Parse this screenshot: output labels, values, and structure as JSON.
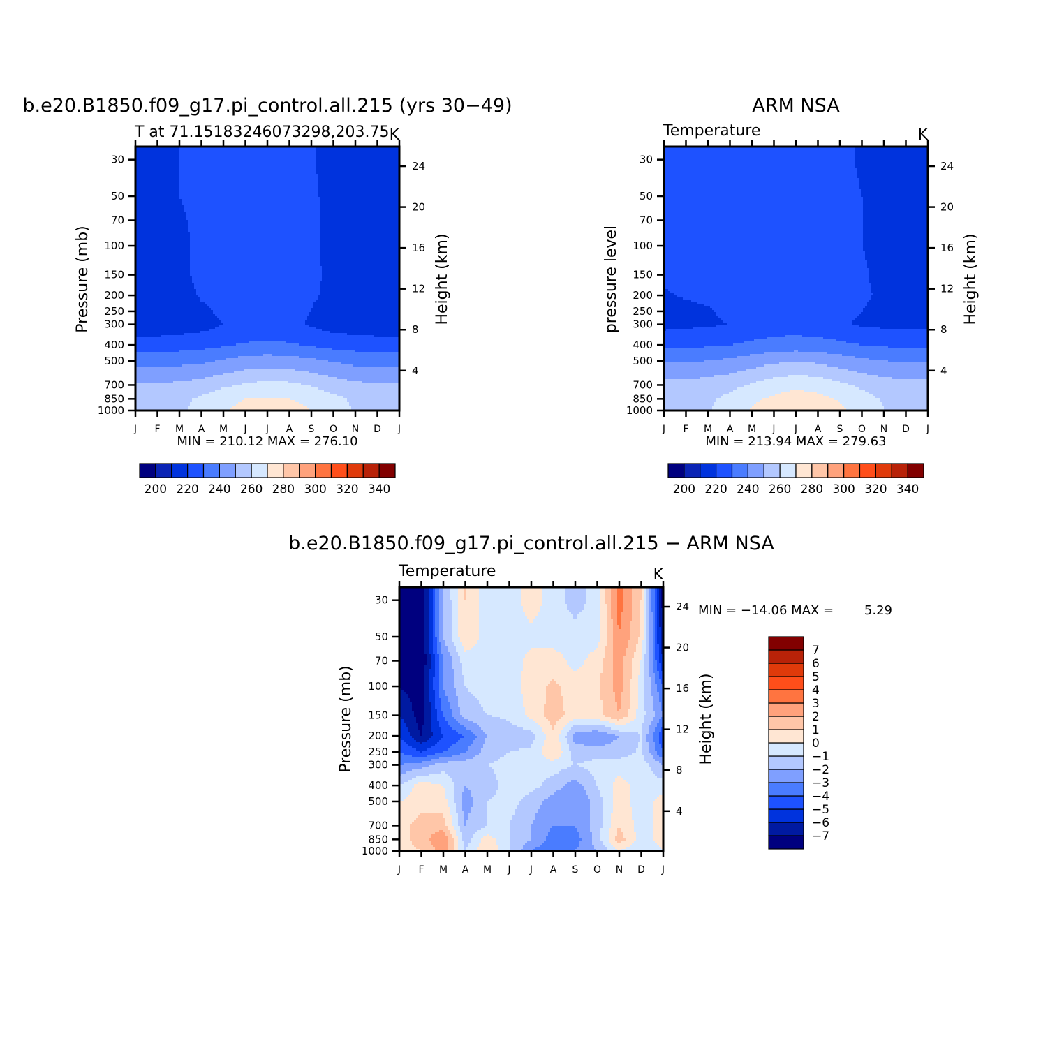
{
  "colors": {
    "abs_scale": [
      "#00007f",
      "#0a24b5",
      "#0033dd",
      "#1e52ff",
      "#4a7cff",
      "#7f9fff",
      "#b3c8ff",
      "#d6e8ff",
      "#ffe6d3",
      "#ffc6a8",
      "#ffa27c",
      "#ff7440",
      "#ff4e1a",
      "#e03a0a",
      "#b82208",
      "#820000"
    ],
    "diff_scale": [
      "#00007f",
      "#001aa1",
      "#0033dd",
      "#1e52ff",
      "#4a7cff",
      "#7f9fff",
      "#b3c8ff",
      "#d6e8ff",
      "#ffe6d3",
      "#ffc6a8",
      "#ffa27c",
      "#ff7440",
      "#ff4e1a",
      "#e03a0a",
      "#b82208",
      "#820000"
    ]
  },
  "chart_data": [
    {
      "id": "model",
      "type": "heatmap",
      "title": "b.e20.B1850.f09_g17.pi_control.all.215 (yrs 30−49)",
      "subtitle_left": "T at 71.15183246073298,203.75",
      "subtitle_right": "K",
      "ylabel_left": "Pressure (mb)",
      "ylabel_right": "Height (km)",
      "x_ticks": [
        "J",
        "F",
        "M",
        "A",
        "M",
        "J",
        "J",
        "A",
        "S",
        "O",
        "N",
        "D",
        "J"
      ],
      "pressure_ticks": [
        "30",
        "50",
        "70",
        "100",
        "150",
        "200",
        "250",
        "300",
        "400",
        "500",
        "700",
        "850",
        "1000"
      ],
      "height_ticks": [
        "24",
        "20",
        "16",
        "12",
        "8",
        "4"
      ],
      "stats": "MIN = 210.12  MAX = 276.10",
      "colorbar_labels": [
        "200",
        "220",
        "240",
        "260",
        "280",
        "300",
        "320",
        "340"
      ],
      "levels": [
        190,
        200,
        210,
        220,
        230,
        240,
        250,
        260,
        270,
        280,
        290,
        300,
        310,
        320,
        330,
        340,
        350
      ],
      "p_levels": [
        30,
        50,
        70,
        100,
        150,
        200,
        250,
        300,
        400,
        500,
        700,
        850,
        1000
      ],
      "months": [
        0,
        1,
        2,
        3,
        4,
        5,
        6,
        7,
        8,
        9,
        10,
        11,
        12
      ],
      "values": [
        [
          215,
          216,
          220,
          222,
          223,
          224,
          223,
          222,
          221,
          216,
          214,
          214,
          215
        ],
        [
          214,
          215,
          220,
          222,
          223,
          224,
          223,
          222,
          221,
          218,
          214,
          214,
          214
        ],
        [
          214,
          215,
          219,
          222,
          223,
          224,
          223,
          222,
          221,
          218,
          215,
          214,
          214
        ],
        [
          213,
          214,
          218,
          222,
          223,
          224,
          223,
          222,
          221,
          218,
          216,
          214,
          213
        ],
        [
          213,
          214,
          218,
          222,
          223,
          224,
          223,
          222,
          221,
          219,
          216,
          214,
          213
        ],
        [
          213,
          213,
          216,
          221,
          222,
          223,
          223,
          222,
          221,
          218,
          214,
          213,
          213
        ],
        [
          212,
          212,
          214,
          218,
          222,
          223,
          223,
          222,
          220,
          215,
          213,
          212,
          212
        ],
        [
          213,
          213,
          214,
          216,
          220,
          222,
          223,
          222,
          219,
          215,
          214,
          213,
          213
        ],
        [
          225,
          225,
          226,
          227,
          229,
          231,
          232,
          231,
          229,
          227,
          226,
          225,
          225
        ],
        [
          236,
          236,
          237,
          238,
          241,
          244,
          245,
          244,
          242,
          239,
          237,
          236,
          236
        ],
        [
          251,
          251,
          252,
          254,
          258,
          261,
          263,
          262,
          259,
          255,
          252,
          251,
          251
        ],
        [
          255,
          255,
          257,
          262,
          267,
          270,
          271,
          270,
          268,
          263,
          258,
          255,
          255
        ],
        [
          256,
          256,
          258,
          264,
          269,
          273,
          276,
          273,
          270,
          265,
          259,
          256,
          256
        ]
      ]
    },
    {
      "id": "obs",
      "type": "heatmap",
      "title": "ARM NSA",
      "subtitle_left": "Temperature",
      "subtitle_right": "K",
      "ylabel_left": "pressure level",
      "ylabel_right": "Height (km)",
      "x_ticks": [
        "J",
        "F",
        "M",
        "A",
        "M",
        "J",
        "J",
        "A",
        "S",
        "O",
        "N",
        "D",
        "J"
      ],
      "pressure_ticks": [
        "30",
        "50",
        "70",
        "100",
        "150",
        "200",
        "250",
        "300",
        "400",
        "500",
        "700",
        "850",
        "1000"
      ],
      "height_ticks": [
        "24",
        "20",
        "16",
        "12",
        "8",
        "4"
      ],
      "stats": "MIN = 213.94  MAX = 279.63",
      "colorbar_labels": [
        "200",
        "220",
        "240",
        "260",
        "280",
        "300",
        "320",
        "340"
      ],
      "levels": [
        190,
        200,
        210,
        220,
        230,
        240,
        250,
        260,
        270,
        280,
        290,
        300,
        310,
        320,
        330,
        340,
        350
      ],
      "p_levels": [
        30,
        50,
        70,
        100,
        150,
        200,
        250,
        300,
        400,
        500,
        700,
        850,
        1000
      ],
      "months": [
        0,
        1,
        2,
        3,
        4,
        5,
        6,
        7,
        8,
        9,
        10,
        11,
        12
      ],
      "values": [
        [
          222,
          222,
          223,
          224,
          224,
          225,
          224,
          223,
          222,
          219,
          218,
          218,
          219
        ],
        [
          222,
          222,
          223,
          224,
          224,
          225,
          224,
          223,
          222,
          220,
          218,
          218,
          219
        ],
        [
          222,
          222,
          223,
          224,
          224,
          225,
          224,
          223,
          222,
          220,
          218,
          218,
          218
        ],
        [
          222,
          222,
          223,
          224,
          224,
          225,
          224,
          223,
          222,
          220,
          218,
          218,
          218
        ],
        [
          222,
          222,
          223,
          224,
          224,
          225,
          224,
          223,
          222,
          221,
          218,
          218,
          218
        ],
        [
          219,
          221,
          222,
          224,
          224,
          225,
          224,
          223,
          222,
          221,
          219,
          218,
          218
        ],
        [
          216,
          217,
          219,
          222,
          223,
          224,
          224,
          223,
          222,
          220,
          218,
          218,
          218
        ],
        [
          217,
          218,
          219,
          220,
          222,
          224,
          224,
          223,
          221,
          219,
          218,
          218,
          218
        ],
        [
          228,
          228,
          229,
          230,
          232,
          234,
          235,
          234,
          232,
          230,
          229,
          228,
          228
        ],
        [
          239,
          239,
          240,
          242,
          245,
          248,
          249,
          248,
          245,
          242,
          240,
          239,
          239
        ],
        [
          253,
          253,
          255,
          257,
          261,
          265,
          268,
          266,
          262,
          258,
          255,
          253,
          253
        ],
        [
          256,
          256,
          258,
          263,
          268,
          272,
          275,
          273,
          269,
          264,
          259,
          256,
          256
        ],
        [
          256,
          256,
          259,
          265,
          271,
          276,
          279,
          276,
          272,
          266,
          260,
          256,
          256
        ]
      ]
    },
    {
      "id": "diff",
      "type": "heatmap",
      "title": "b.e20.B1850.f09_g17.pi_control.all.215 − ARM NSA",
      "subtitle_left": "Temperature",
      "subtitle_right": "K",
      "ylabel_left": "Pressure (mb)",
      "ylabel_right": "Height (km)",
      "x_ticks": [
        "J",
        "F",
        "M",
        "A",
        "M",
        "J",
        "J",
        "A",
        "S",
        "O",
        "N",
        "D",
        "J"
      ],
      "pressure_ticks": [
        "30",
        "50",
        "70",
        "100",
        "150",
        "200",
        "250",
        "300",
        "400",
        "500",
        "700",
        "850",
        "1000"
      ],
      "height_ticks": [
        "24",
        "20",
        "16",
        "12",
        "8",
        "4"
      ],
      "stats_label": "MIN = −14.06 MAX =",
      "stats_value": "5.29",
      "colorbar_labels": [
        "7",
        "6",
        "5",
        "4",
        "3",
        "2",
        "1",
        "0",
        "−1",
        "−2",
        "−3",
        "−4",
        "−5",
        "−6",
        "−7"
      ],
      "levels": [
        -8,
        -7,
        -6,
        -5,
        -4,
        -3,
        -2,
        -1,
        0,
        1,
        2,
        3,
        4,
        5,
        6,
        7,
        8
      ],
      "p_levels": [
        30,
        50,
        70,
        100,
        150,
        200,
        250,
        300,
        400,
        500,
        700,
        850,
        1000
      ],
      "months": [
        0,
        1,
        2,
        3,
        4,
        5,
        6,
        7,
        8,
        9,
        10,
        11,
        12
      ],
      "values": [
        [
          -7.5,
          -8,
          -2,
          1,
          -0.5,
          -0.5,
          0.5,
          -0.5,
          -1.5,
          -0.5,
          3.5,
          1,
          -7.5
        ],
        [
          -7.5,
          -8,
          -2,
          0.8,
          -0.5,
          -0.5,
          -0.3,
          -0.5,
          -0.5,
          -0.5,
          3,
          0.8,
          -7
        ],
        [
          -7.5,
          -8,
          -3,
          -0.5,
          -0.6,
          -0.5,
          0.3,
          0.5,
          -0.4,
          0.5,
          2.5,
          0,
          -6
        ],
        [
          -7,
          -7.5,
          -3,
          -1,
          -0.6,
          -0.5,
          0.5,
          1.2,
          0.5,
          0.8,
          2.5,
          -0.5,
          -4
        ],
        [
          -6,
          -7.5,
          -4,
          -1.5,
          -1,
          -0.8,
          0.3,
          1.5,
          0.5,
          0.6,
          2,
          -0.5,
          -3
        ],
        [
          -5,
          -7,
          -5,
          -4,
          -2,
          -1.5,
          -1.5,
          0.8,
          -2.5,
          -3,
          -2,
          -1,
          -5
        ],
        [
          -4,
          -5,
          -4,
          -3,
          -1.5,
          -1,
          -0.8,
          1,
          -1.5,
          -1.5,
          -1.5,
          -0.8,
          -4
        ],
        [
          -3,
          -2.5,
          -1.5,
          -1.5,
          -1,
          -0.6,
          -0.5,
          -0.5,
          -1,
          -0.6,
          -0.5,
          -0.5,
          -2
        ],
        [
          -1,
          0.5,
          0,
          -2,
          -1.5,
          -0.5,
          -0.6,
          -1.5,
          -2.5,
          -1,
          0.5,
          -0.6,
          -0.5
        ],
        [
          0,
          0.5,
          0.5,
          -2.5,
          -1,
          -0.6,
          -1.5,
          -2.5,
          -3,
          -1.5,
          0.5,
          -0.6,
          0.5
        ],
        [
          0.5,
          1.5,
          1.5,
          -2,
          -1,
          -1,
          -2,
          -3,
          -3,
          -1.5,
          1,
          -0.5,
          0.5
        ],
        [
          0.5,
          1.5,
          3,
          -1.5,
          0.5,
          -1,
          -2,
          -3.5,
          -3.5,
          -1.5,
          1.5,
          -0.5,
          0.5
        ],
        [
          0.5,
          1,
          2.5,
          -1,
          1,
          -1,
          -3,
          -4,
          -3,
          -2,
          0,
          -1,
          0
        ]
      ]
    }
  ]
}
